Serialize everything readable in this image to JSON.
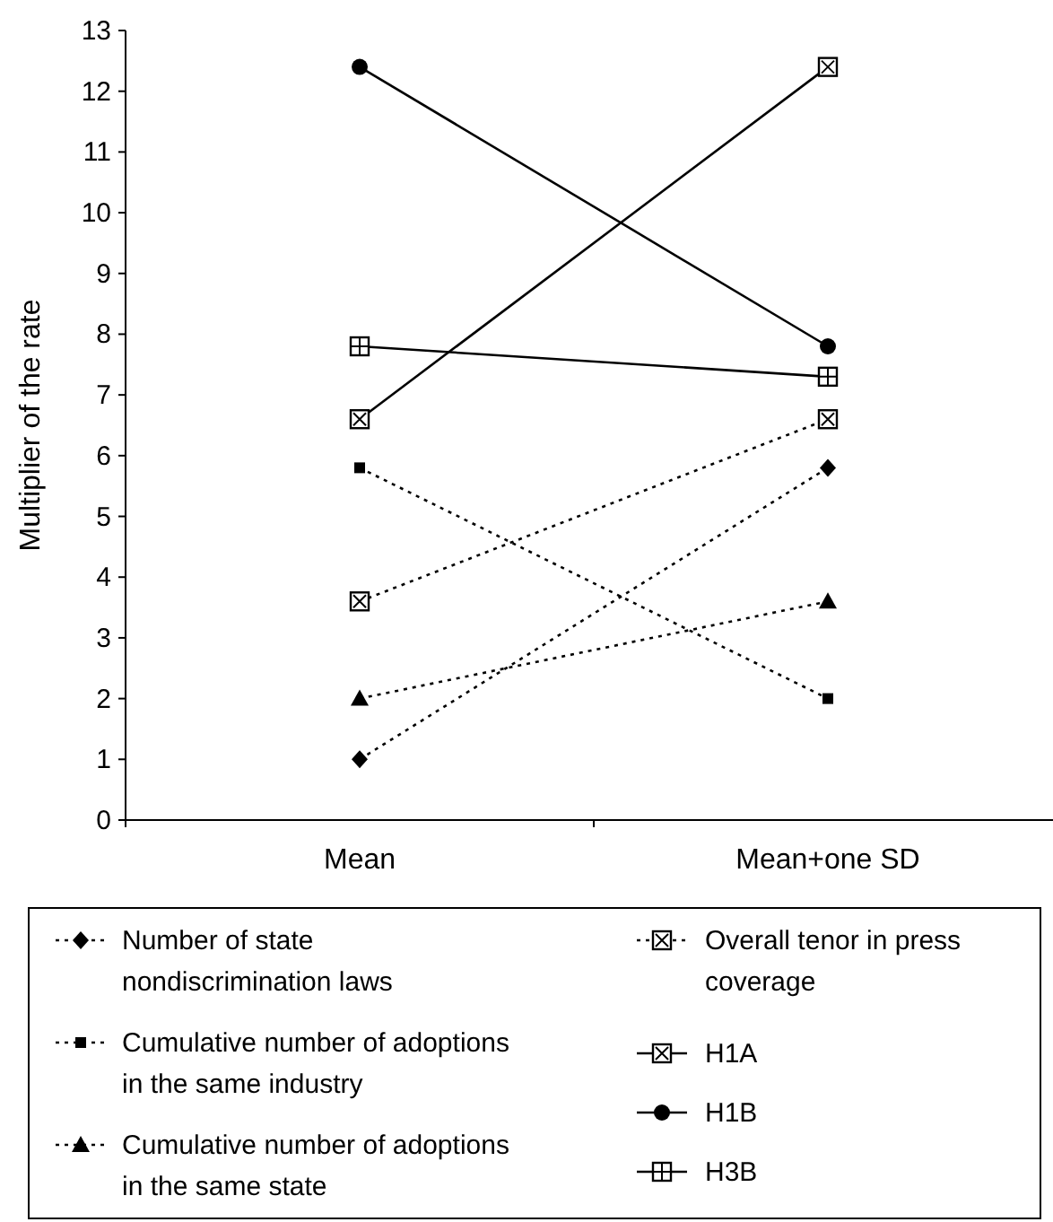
{
  "chart_data": {
    "type": "line",
    "ylabel": "Multiplier of the rate",
    "categories": [
      "Mean",
      "Mean+one SD"
    ],
    "ylim": [
      0,
      13
    ],
    "yticks": [
      0,
      1,
      2,
      3,
      4,
      5,
      6,
      7,
      8,
      9,
      10,
      11,
      12,
      13
    ],
    "grid": false,
    "legend": "bottom",
    "series": [
      {
        "name": "Number of state nondiscrimination laws",
        "color": "#000000",
        "values": [
          1.0,
          5.8
        ],
        "marker": "diamond",
        "line_style": "dotted"
      },
      {
        "name": "Cumulative number of adoptions in the same industry",
        "color": "#000000",
        "values": [
          5.8,
          2.0
        ],
        "marker": "square",
        "line_style": "dotted"
      },
      {
        "name": "Cumulative number of adoptions in the same state",
        "color": "#000000",
        "values": [
          2.0,
          3.6
        ],
        "marker": "triangle",
        "line_style": "dotted"
      },
      {
        "name": "Overall tenor in press coverage",
        "color": "#000000",
        "values": [
          3.6,
          6.6
        ],
        "marker": "square-x",
        "line_style": "dotted"
      },
      {
        "name": "H1A",
        "color": "#000000",
        "values": [
          6.6,
          12.4
        ],
        "marker": "square-x",
        "line_style": "solid"
      },
      {
        "name": "H1B",
        "color": "#000000",
        "values": [
          12.4,
          7.8
        ],
        "marker": "circle",
        "line_style": "solid"
      },
      {
        "name": "H3B",
        "color": "#000000",
        "values": [
          7.8,
          7.3
        ],
        "marker": "square-plus",
        "line_style": "solid"
      }
    ]
  }
}
